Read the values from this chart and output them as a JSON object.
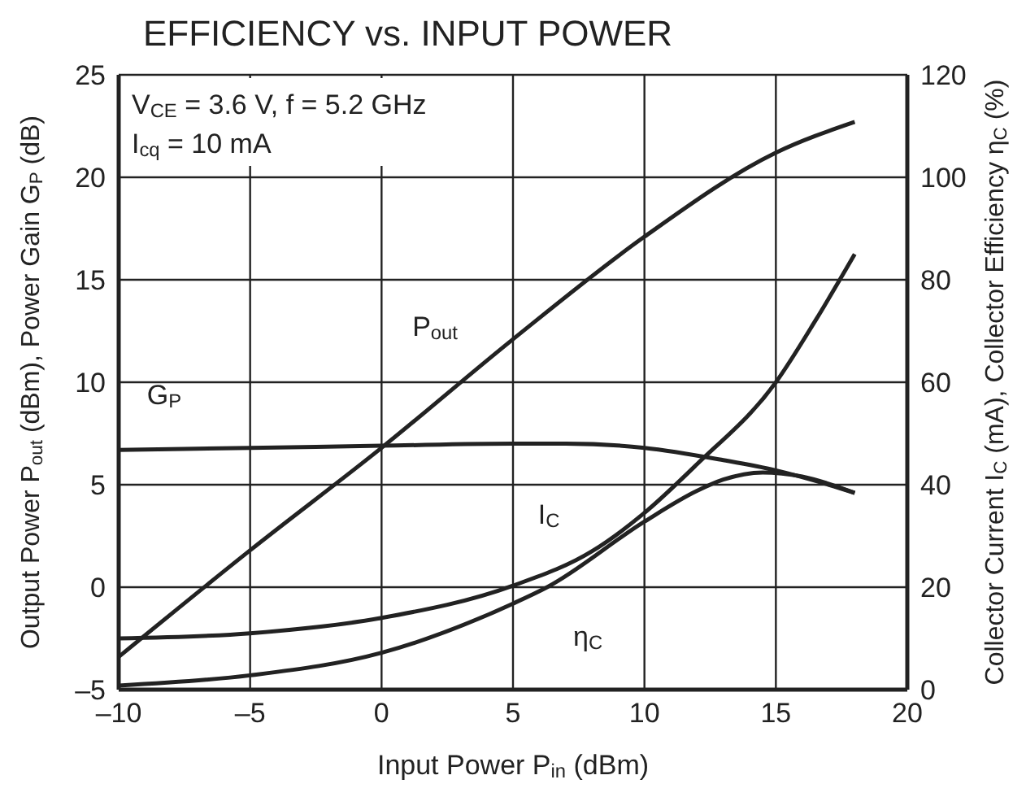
{
  "chart_data": {
    "type": "line",
    "title": "EFFICIENCY vs. INPUT POWER",
    "xlabel": "Input Power  P$_{in}$ (dBm)",
    "ylabel": "Output Power  P$_{out}$ (dBm), Power Gain  G$_{P}$ (dB)",
    "y2label": "Collector Current  I$_{C}$ (mA), Collector Efficiency  η$_{C}$ (%)",
    "annotations": [
      "V$_{CE}$ = 3.6 V, f = 5.2 GHz",
      "I$_{cq}$ = 10 mA"
    ],
    "xlim": [
      -10,
      20
    ],
    "xticks": [
      {
        "value": -10,
        "label": "–10"
      },
      {
        "value": -5,
        "label": "–5"
      },
      0,
      5,
      10,
      15,
      20
    ],
    "ylim": [
      -5,
      25
    ],
    "yticks": [
      {
        "value": -5,
        "label": "–5"
      },
      0,
      5,
      10,
      15,
      20,
      25
    ],
    "y2lim": [
      0,
      120
    ],
    "y2ticks": [
      0,
      20,
      40,
      60,
      80,
      100,
      120
    ],
    "grid": true,
    "marker": "none",
    "line_style": "solid",
    "series": [
      {
        "name": "P$_{out}$",
        "color": "#222222",
        "x": [
          -10,
          -5,
          0,
          5,
          10,
          15,
          18
        ],
        "values": [
          -3.4,
          1.8,
          6.8,
          12.1,
          17.1,
          21.2,
          22.7
        ]
      },
      {
        "name": "G$_{P}$",
        "color": "#222222",
        "x": [
          -10,
          -5,
          0,
          5,
          7,
          10,
          13,
          15,
          17,
          18
        ],
        "values": [
          6.7,
          6.8,
          6.9,
          7.0,
          7.0,
          6.8,
          6.2,
          5.7,
          5.0,
          4.6
        ]
      },
      {
        "name": "I$_{C}$",
        "color": "#222222",
        "axis": "y2",
        "x": [
          -10,
          -5,
          0,
          5,
          8,
          10,
          12,
          15,
          16.5,
          18
        ],
        "values": [
          10,
          11,
          14,
          20.3,
          27,
          34.5,
          44,
          60,
          72,
          85
        ]
      },
      {
        "name": "η$_{C}$",
        "color": "#222222",
        "axis": "y2",
        "x": [
          -10,
          -5,
          0,
          5,
          6.3,
          10,
          12,
          13,
          14.5,
          16,
          18
        ],
        "values": [
          0.8,
          2.8,
          7.2,
          16.8,
          20,
          32.8,
          38.8,
          41,
          42.4,
          41.6,
          38.4
        ]
      }
    ]
  }
}
